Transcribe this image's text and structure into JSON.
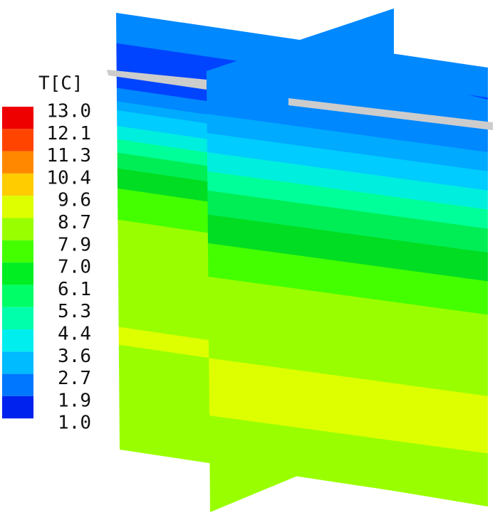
{
  "legend": {
    "title": "T[C]",
    "labels": [
      "13.0",
      "12.1",
      "11.3",
      "10.4",
      "9.6",
      "8.7",
      "7.9",
      "7.0",
      "6.1",
      "5.3",
      "4.4",
      "3.6",
      "2.7",
      "1.9",
      "1.0"
    ]
  }
}
